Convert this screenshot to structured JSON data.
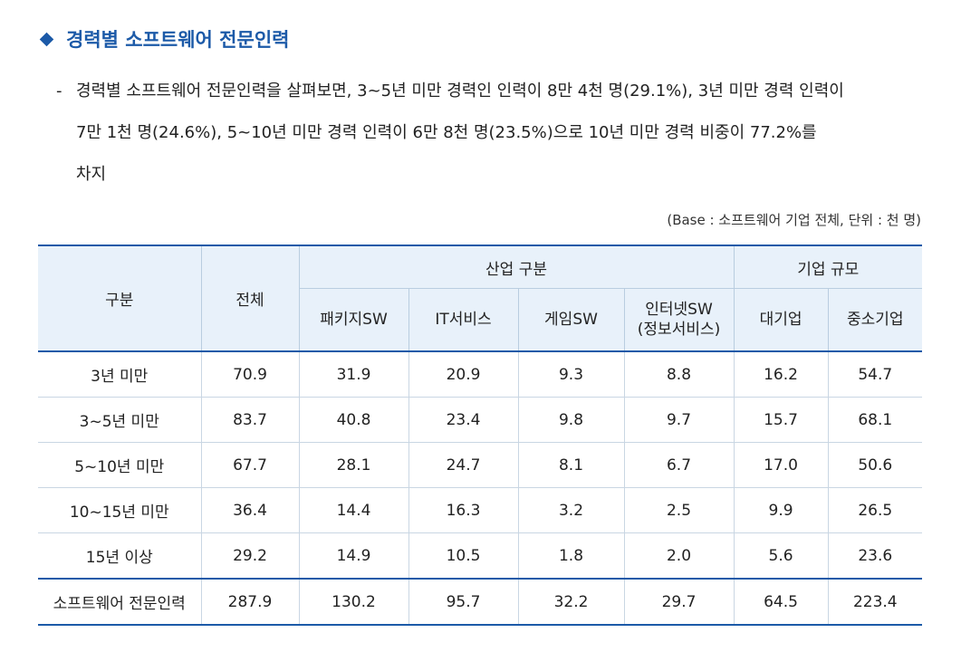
{
  "heading": "경력별 소프트웨어 전문인력",
  "paragraph": {
    "dash": "-",
    "line1": "경력별 소프트웨어 전문인력을 살펴보면, 3~5년 미만 경력인 인력이 8만 4천 명(29.1%), 3년 미만 경력 인력이",
    "line2": "7만 1천 명(24.6%), 5~10년 미만 경력 인력이 6만 8천 명(23.5%)으로 10년 미만 경력 비중이 77.2%를",
    "line3": "차지"
  },
  "base_note": "(Base : 소프트웨어 기업 전체, 단위 : 천 명)",
  "table": {
    "header": {
      "category": "구분",
      "total": "전체",
      "industry_group": "산업 구분",
      "size_group": "기업 규모",
      "industry_cols": [
        "패키지SW",
        "IT서비스",
        "게임SW",
        "인터넷SW\n(정보서비스)"
      ],
      "internet_line1": "인터넷SW",
      "internet_line2": "(정보서비스)",
      "size_cols": [
        "대기업",
        "중소기업"
      ]
    },
    "rows": [
      {
        "label": "3년 미만",
        "values": [
          "70.9",
          "31.9",
          "20.9",
          "9.3",
          "8.8",
          "16.2",
          "54.7"
        ]
      },
      {
        "label": "3~5년 미만",
        "values": [
          "83.7",
          "40.8",
          "23.4",
          "9.8",
          "9.7",
          "15.7",
          "68.1"
        ]
      },
      {
        "label": "5~10년 미만",
        "values": [
          "67.7",
          "28.1",
          "24.7",
          "8.1",
          "6.7",
          "17.0",
          "50.6"
        ]
      },
      {
        "label": "10~15년 미만",
        "values": [
          "36.4",
          "14.4",
          "16.3",
          "3.2",
          "2.5",
          "9.9",
          "26.5"
        ]
      },
      {
        "label": "15년 이상",
        "values": [
          "29.2",
          "14.9",
          "10.5",
          "1.8",
          "2.0",
          "5.6",
          "23.6"
        ]
      },
      {
        "label": "소프트웨어 전문인력",
        "values": [
          "287.9",
          "130.2",
          "95.7",
          "32.2",
          "29.7",
          "64.5",
          "223.4"
        ]
      }
    ]
  },
  "colors": {
    "accent": "#1c5aa8",
    "header_bg": "#e8f1fa"
  }
}
